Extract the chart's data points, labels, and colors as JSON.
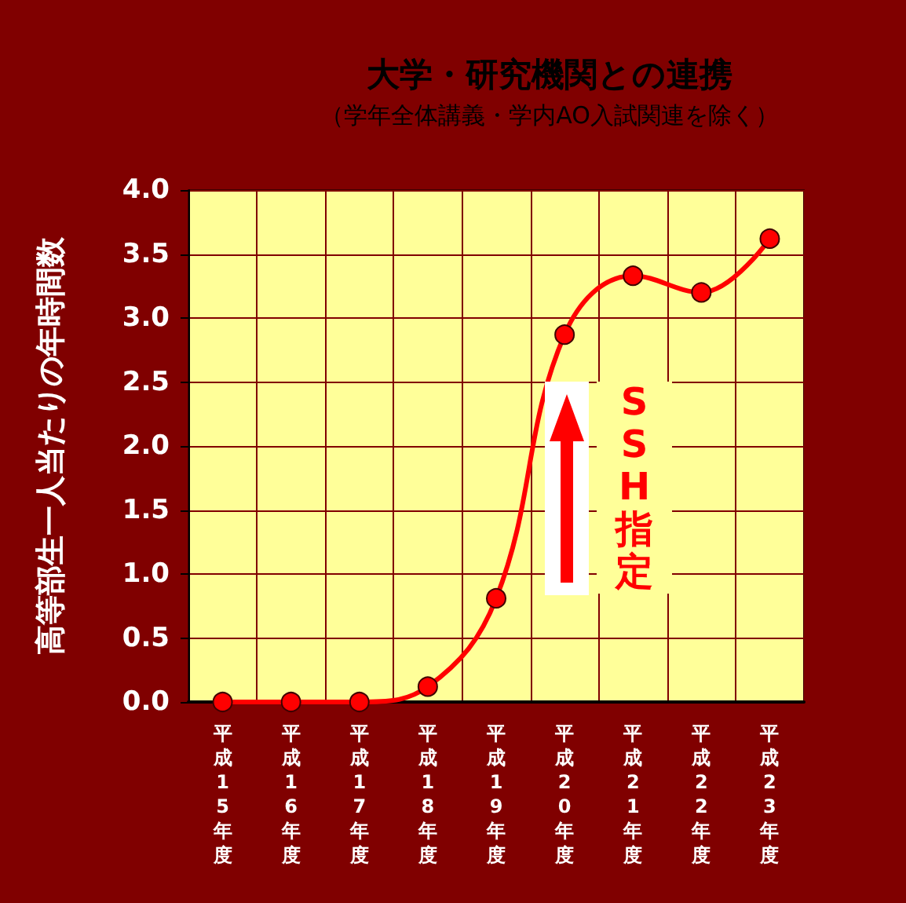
{
  "chart_data": {
    "type": "line",
    "title": "大学・研究機関との連携",
    "subtitle": "（学年全体講義・学内AO入試関連を除く）",
    "ylabel": "高等部生一人当たりの年時間数",
    "categories": [
      "平成15年度",
      "平成16年度",
      "平成17年度",
      "平成18年度",
      "平成19年度",
      "平成20年度",
      "平成21年度",
      "平成22年度",
      "平成23年度"
    ],
    "series": [
      {
        "color": "#ff0000",
        "values": [
          0,
          0,
          0,
          0.12,
          0.81,
          2.87,
          3.33,
          3.2,
          3.62
        ]
      }
    ],
    "ylim": [
      0,
      4
    ],
    "yticks": [
      {
        "value": 0,
        "label": "0.0"
      },
      {
        "value": 0.5,
        "label": "0.5"
      },
      {
        "value": 1,
        "label": "1.0"
      },
      {
        "value": 1.5,
        "label": "1.5"
      },
      {
        "value": 2,
        "label": "2.0"
      },
      {
        "value": 2.5,
        "label": "2.5"
      },
      {
        "value": 3,
        "label": "3.0"
      },
      {
        "value": 3.5,
        "label": "3.5"
      },
      {
        "value": 4,
        "label": "4.0"
      }
    ],
    "grid": true,
    "marker": "circle",
    "line_style": "solid",
    "annotations": [
      "SSH指定"
    ]
  }
}
